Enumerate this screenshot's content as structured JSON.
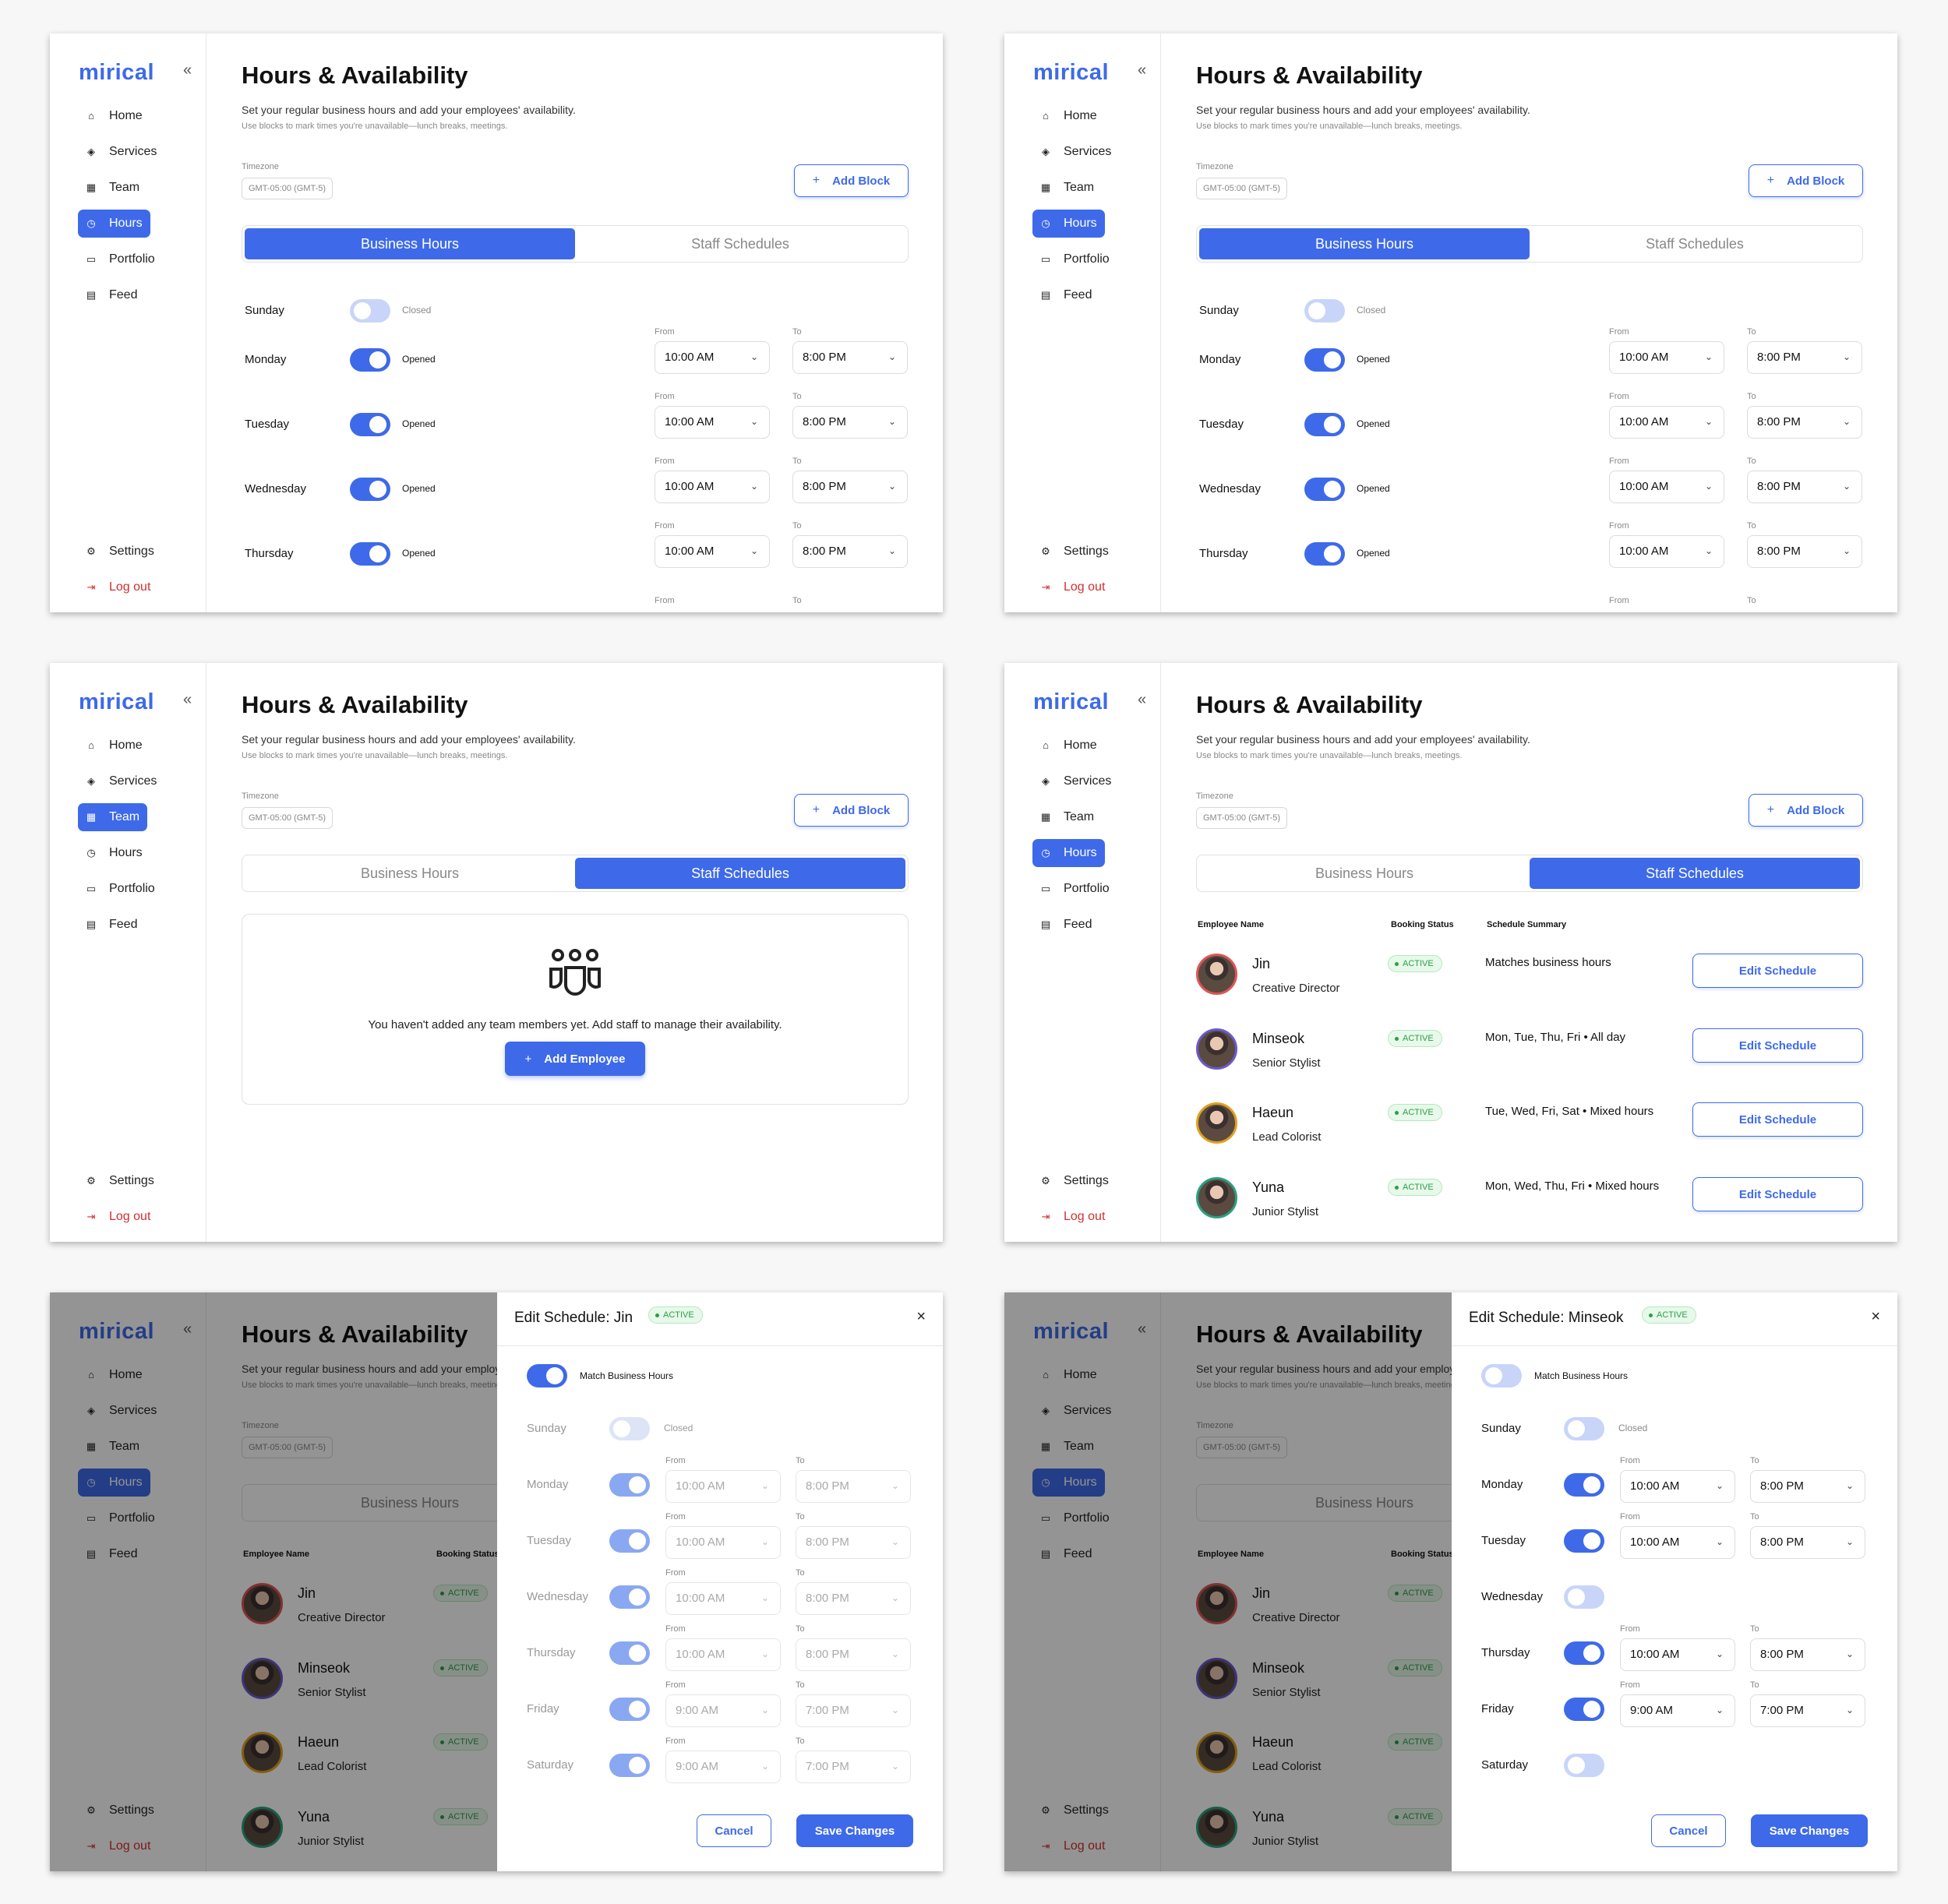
{
  "app": {
    "logo": "mirical",
    "collapse_icon": "«",
    "nav": {
      "home": "Home",
      "services": "Services",
      "team": "Team",
      "hours": "Hours",
      "portfolio": "Portfolio",
      "feed": "Feed",
      "settings": "Settings",
      "logout": "Log out"
    },
    "accent_color": "#3e6ae9",
    "danger_color": "#d32f2f"
  },
  "page": {
    "title": "Hours & Availability",
    "subtitle": "Set your regular business hours and add your employees' availability.",
    "hint": "Use blocks to mark times you're unavailable—lunch breaks, meetings.",
    "timezone_label": "Timezone",
    "timezone_value": "GMT-05:00 (GMT-5)",
    "add_block": "Add Block",
    "tabs": {
      "business": "Business Hours",
      "staff": "Staff Schedules"
    }
  },
  "labels": {
    "from": "From",
    "to": "To",
    "opened": "Opened",
    "closed": "Closed",
    "chevron": "⌄"
  },
  "business_hours": [
    {
      "day": "Sunday",
      "open": false
    },
    {
      "day": "Monday",
      "open": true,
      "from": "10:00 AM",
      "to": "8:00 PM"
    },
    {
      "day": "Tuesday",
      "open": true,
      "from": "10:00 AM",
      "to": "8:00 PM"
    },
    {
      "day": "Wednesday",
      "open": true,
      "from": "10:00 AM",
      "to": "8:00 PM"
    },
    {
      "day": "Thursday",
      "open": true,
      "from": "10:00 AM",
      "to": "8:00 PM"
    }
  ],
  "empty_state": {
    "text": "You haven't added any team members yet. Add staff to manage their availability.",
    "button": "Add Employee"
  },
  "staff_table": {
    "headers": {
      "name": "Employee Name",
      "status": "Booking Status",
      "summary": "Schedule Summary"
    },
    "edit_label": "Edit Schedule",
    "status_label": "ACTIVE",
    "rows": [
      {
        "name": "Jin",
        "role": "Creative Director",
        "summary": "Matches business hours"
      },
      {
        "name": "Minseok",
        "role": "Senior Stylist",
        "summary": "Mon, Tue, Thu, Fri • All day"
      },
      {
        "name": "Haeun",
        "role": "Lead Colorist",
        "summary": "Tue, Wed, Fri, Sat • Mixed hours"
      },
      {
        "name": "Yuna",
        "role": "Junior Stylist",
        "summary": "Mon, Wed, Thu, Fri • Mixed hours"
      }
    ]
  },
  "modal": {
    "match_label": "Match Business Hours",
    "cancel": "Cancel",
    "save": "Save Changes",
    "close_icon": "×",
    "jin": {
      "title": "Edit Schedule: Jin",
      "match": true,
      "days": [
        {
          "day": "Sunday",
          "open": false
        },
        {
          "day": "Monday",
          "open": true,
          "from": "10:00 AM",
          "to": "8:00 PM"
        },
        {
          "day": "Tuesday",
          "open": true,
          "from": "10:00 AM",
          "to": "8:00 PM"
        },
        {
          "day": "Wednesday",
          "open": true,
          "from": "10:00 AM",
          "to": "8:00 PM"
        },
        {
          "day": "Thursday",
          "open": true,
          "from": "10:00 AM",
          "to": "8:00 PM"
        },
        {
          "day": "Friday",
          "open": true,
          "from": "9:00 AM",
          "to": "7:00 PM"
        },
        {
          "day": "Saturday",
          "open": true,
          "from": "9:00 AM",
          "to": "7:00 PM"
        }
      ]
    },
    "minseok": {
      "title": "Edit Schedule: Minseok",
      "match": false,
      "days": [
        {
          "day": "Sunday",
          "open": false
        },
        {
          "day": "Monday",
          "open": true,
          "from": "10:00 AM",
          "to": "8:00 PM"
        },
        {
          "day": "Tuesday",
          "open": true,
          "from": "10:00 AM",
          "to": "8:00 PM"
        },
        {
          "day": "Wednesday",
          "open": false
        },
        {
          "day": "Thursday",
          "open": true,
          "from": "10:00 AM",
          "to": "8:00 PM"
        },
        {
          "day": "Friday",
          "open": true,
          "from": "9:00 AM",
          "to": "7:00 PM"
        },
        {
          "day": "Saturday",
          "open": false
        }
      ]
    }
  }
}
